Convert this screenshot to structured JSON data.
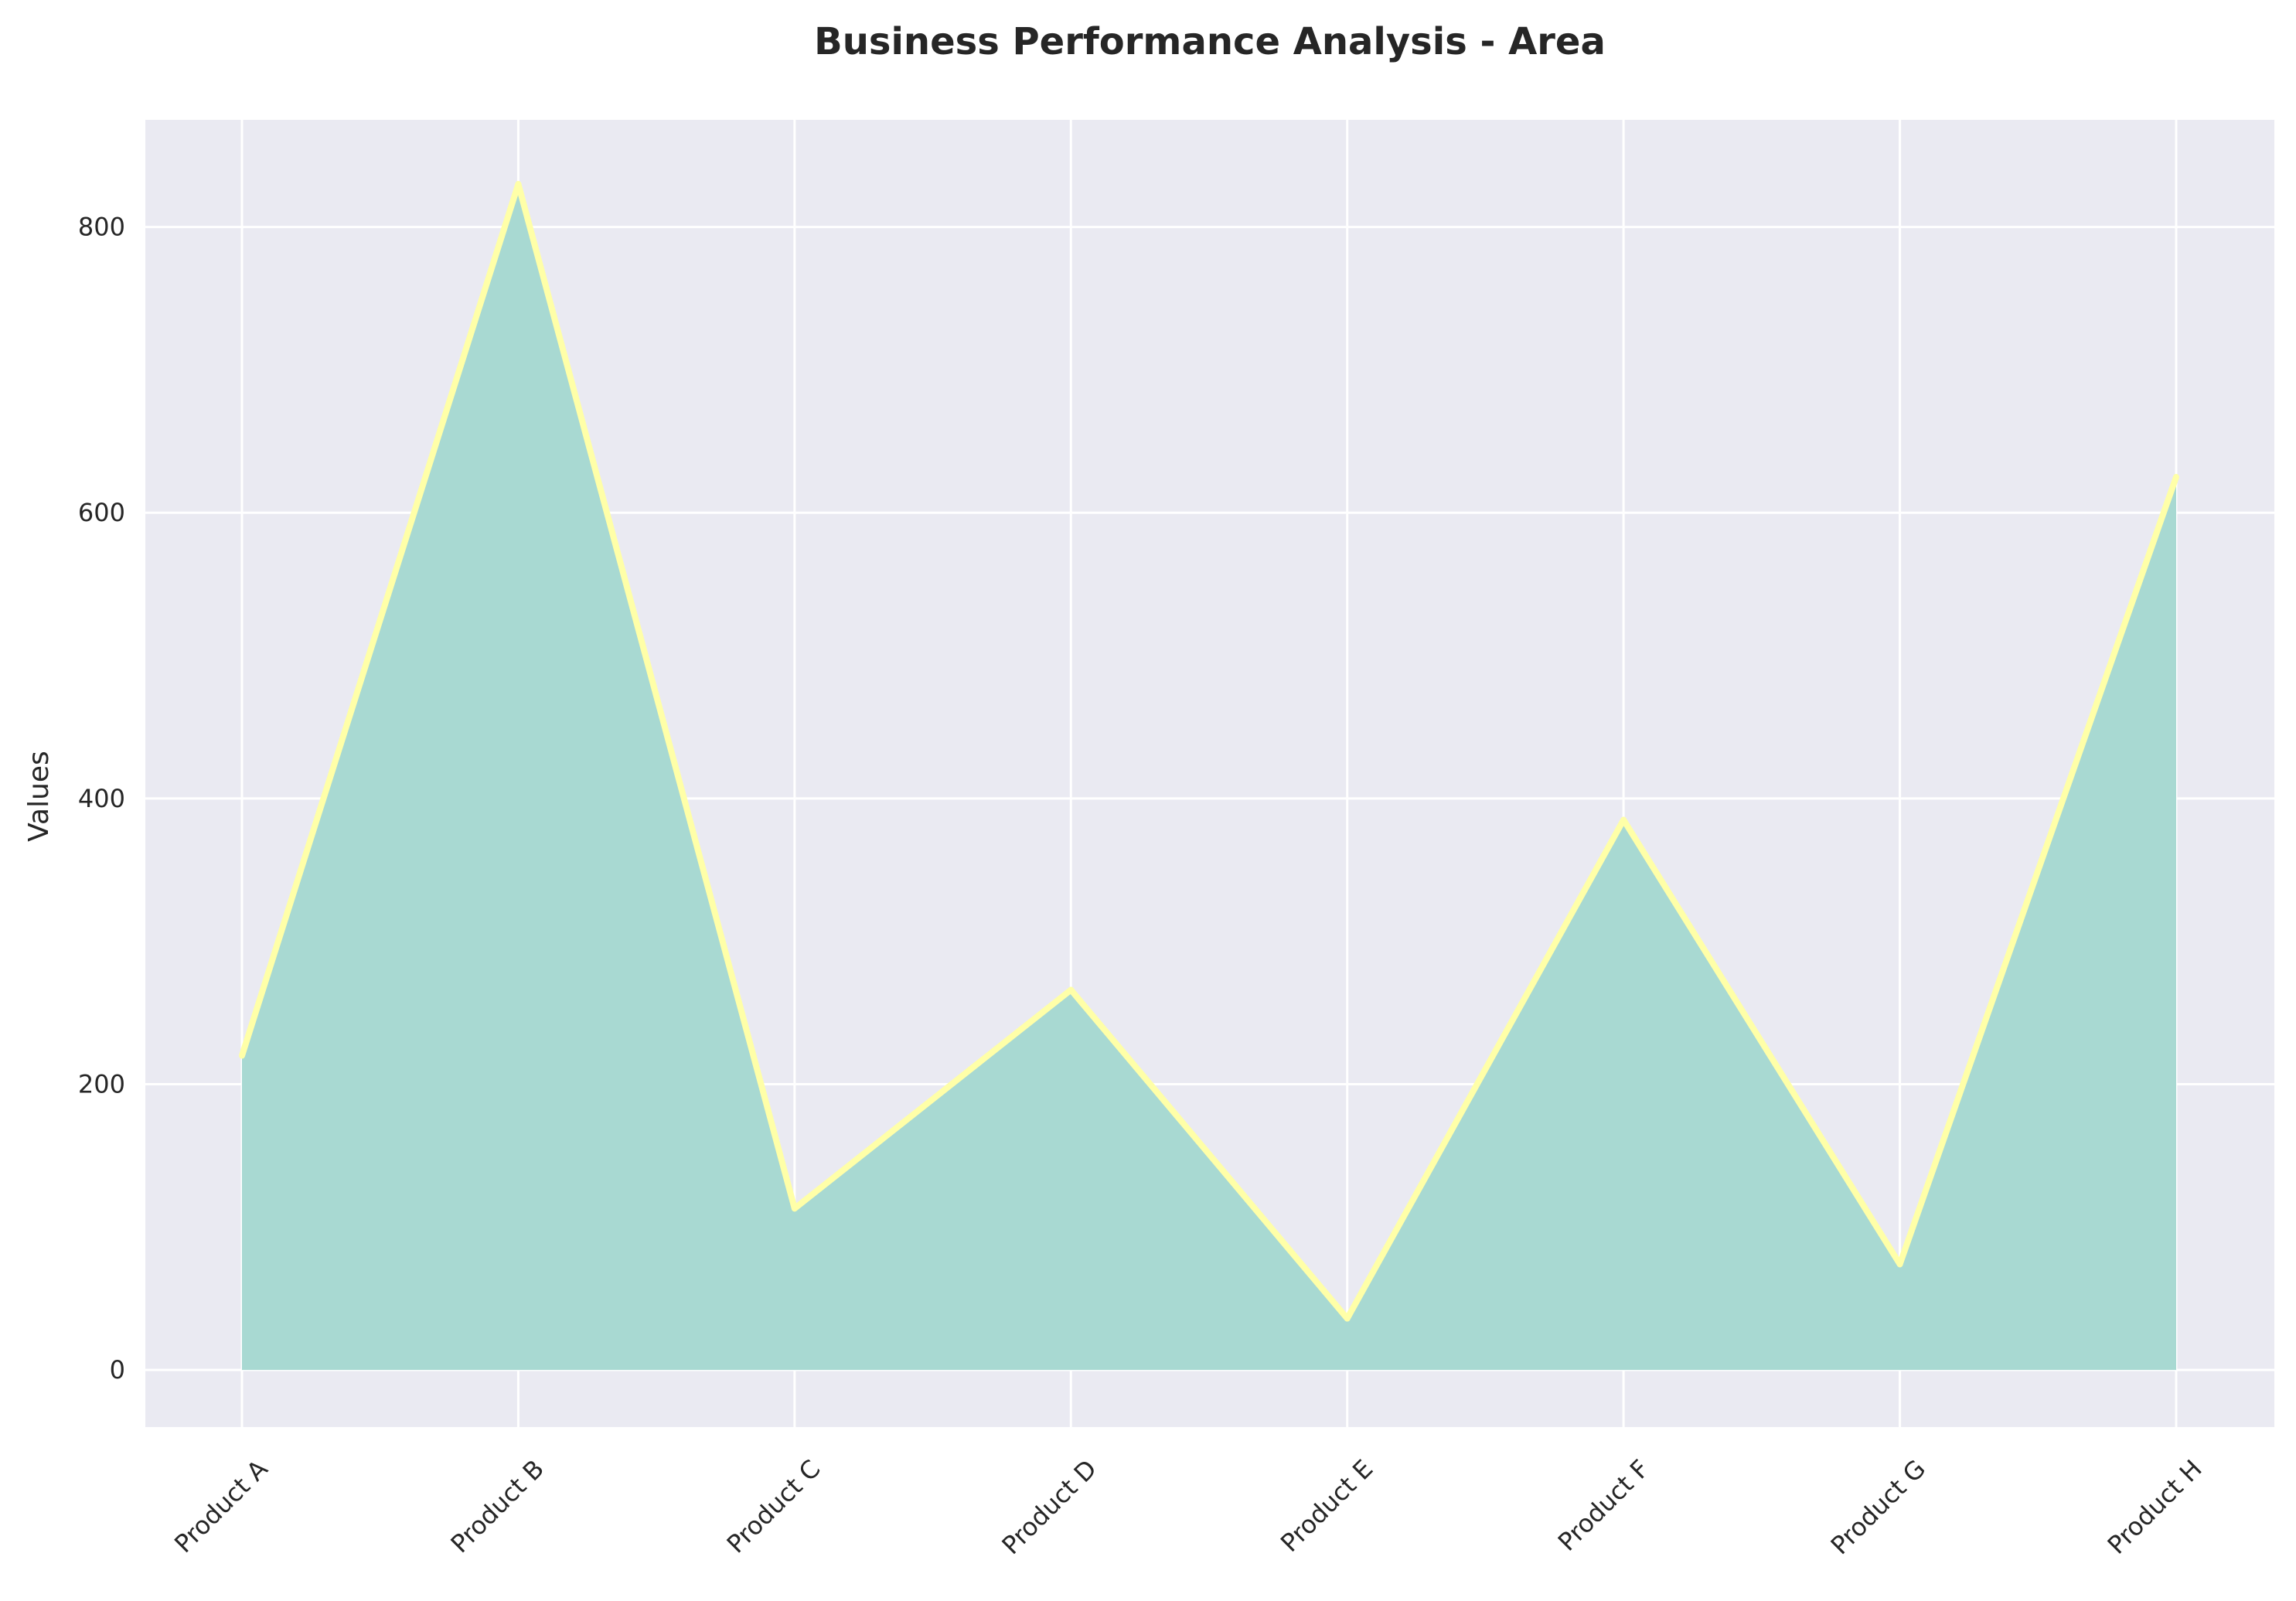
{
  "chart_data": {
    "type": "area",
    "title": "Business Performance Analysis - Area",
    "xlabel": "",
    "ylabel": "Values",
    "categories": [
      "Product A",
      "Product B",
      "Product C",
      "Product D",
      "Product E",
      "Product F",
      "Product G",
      "Product H"
    ],
    "series": [
      {
        "values": [
          220,
          830,
          113,
          266,
          36,
          385,
          74,
          625
        ]
      }
    ],
    "yticks": [
      "0",
      "200",
      "400",
      "600",
      "800"
    ],
    "ylim": [
      -40,
      875
    ],
    "grid": true,
    "colors": {
      "plot_background": "#EAEAF2",
      "grid": "#FFFFFF",
      "area_fill": "#A8D9D2",
      "line": "#FFFFA8"
    }
  }
}
